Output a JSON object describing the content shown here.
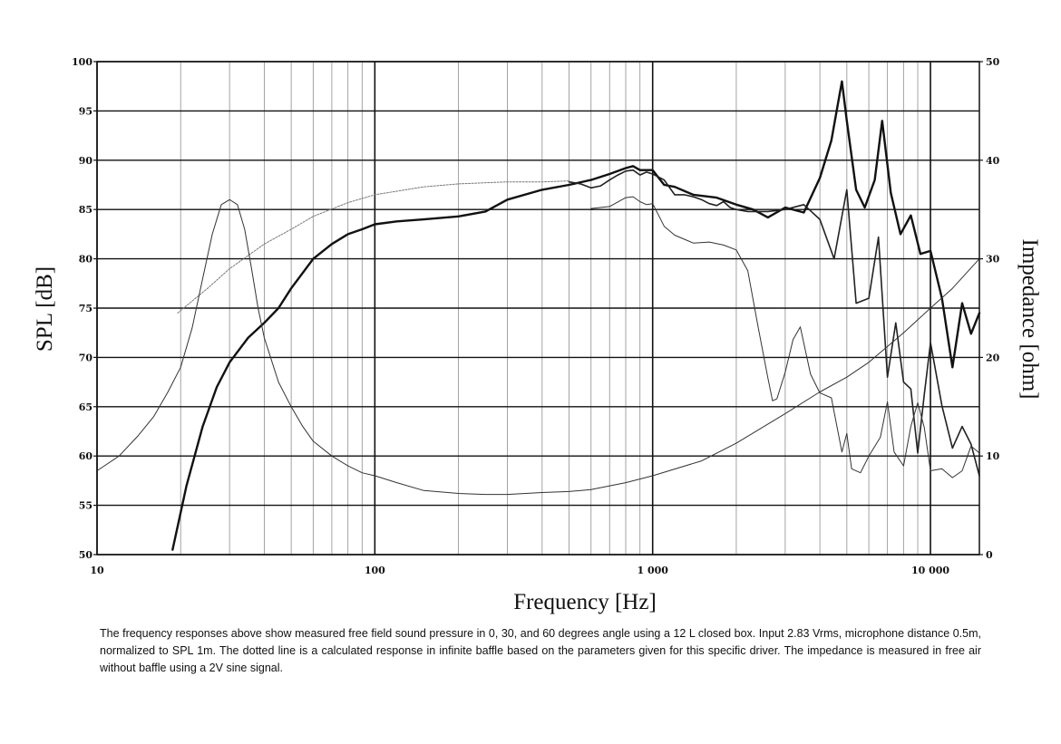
{
  "chart_data": {
    "type": "line",
    "title": "",
    "xlabel": "Frequency [Hz]",
    "ylabel": "SPL [dB]",
    "y2label": "Impedance [ohm]",
    "x_scale": "log",
    "xlim": [
      10,
      15000
    ],
    "ylim": [
      50,
      100
    ],
    "y2lim": [
      0,
      50
    ],
    "grid": true,
    "legend": "none",
    "x_ticks": [
      {
        "value": 10,
        "label": "10"
      },
      {
        "value": 100,
        "label": "100"
      },
      {
        "value": 1000,
        "label": "1 000"
      },
      {
        "value": 10000,
        "label": "10 000"
      }
    ],
    "y_ticks": [
      {
        "value": 50,
        "label": "50"
      },
      {
        "value": 55,
        "label": "55"
      },
      {
        "value": 60,
        "label": "60"
      },
      {
        "value": 65,
        "label": "65"
      },
      {
        "value": 70,
        "label": "70"
      },
      {
        "value": 75,
        "label": "75"
      },
      {
        "value": 80,
        "label": "80"
      },
      {
        "value": 85,
        "label": "85"
      },
      {
        "value": 90,
        "label": "90"
      },
      {
        "value": 95,
        "label": "95"
      },
      {
        "value": 100,
        "label": "100"
      }
    ],
    "y2_ticks": [
      {
        "value": 0,
        "label": "0"
      },
      {
        "value": 10,
        "label": "10"
      },
      {
        "value": 20,
        "label": "20"
      },
      {
        "value": 30,
        "label": "30"
      },
      {
        "value": 40,
        "label": "40"
      },
      {
        "value": 50,
        "label": "50"
      }
    ],
    "series": [
      {
        "axis": "left",
        "style": "thick",
        "x": [
          18.7,
          21,
          24,
          27,
          30,
          35,
          40,
          45,
          50,
          60,
          70,
          80,
          90,
          100,
          120,
          150,
          200,
          250,
          300,
          400,
          500,
          600,
          700,
          800,
          850,
          900,
          1000,
          1100,
          1200,
          1400,
          1700,
          2000,
          2300,
          2600,
          3000,
          3500,
          4000,
          4400,
          4800,
          5000,
          5400,
          5800,
          6300,
          6700,
          7200,
          7800,
          8500,
          9200,
          10000,
          11000,
          12000,
          13000,
          14000,
          15000
        ],
        "y": [
          50.5,
          57,
          63,
          67,
          69.5,
          72,
          73.5,
          75,
          77,
          80,
          81.5,
          82.5,
          83,
          83.5,
          83.8,
          84,
          84.3,
          84.8,
          86,
          87,
          87.5,
          88,
          88.6,
          89.2,
          89.4,
          89,
          89,
          87.5,
          87.3,
          86.5,
          86.2,
          85.5,
          85.0,
          84.2,
          85.2,
          84.7,
          88.2,
          92,
          98,
          94,
          87,
          85.2,
          88,
          94,
          86.7,
          82.5,
          84.4,
          80.5,
          80.8,
          76,
          69,
          75.5,
          72.4,
          74.5
        ]
      },
      {
        "axis": "left",
        "style": "medium",
        "x": [
          500,
          550,
          600,
          650,
          700,
          750,
          800,
          850,
          900,
          950,
          1000,
          1100,
          1200,
          1300,
          1400,
          1500,
          1600,
          1700,
          1800,
          1900,
          2000,
          2200,
          2600,
          3000,
          3500,
          4000,
          4500,
          5000,
          5400,
          6000,
          6500,
          7000,
          7500,
          8000,
          8500,
          9000,
          9500,
          10000,
          11000,
          12000,
          13000,
          14000,
          15000
        ],
        "y": [
          87.8,
          87.6,
          87.2,
          87.4,
          88,
          88.5,
          88.9,
          89,
          88.5,
          88.8,
          88.6,
          88,
          86.5,
          86.5,
          86.3,
          86,
          85.6,
          85.4,
          85.8,
          85.2,
          85,
          84.8,
          84.8,
          85,
          85.5,
          84,
          80,
          87,
          75.5,
          76,
          82.2,
          68,
          73.5,
          67.5,
          66.8,
          60.3,
          66.2,
          71.5,
          65.1,
          60.8,
          63,
          61.2,
          58
        ]
      },
      {
        "axis": "left",
        "style": "thin",
        "x": [
          600,
          700,
          800,
          850,
          900,
          950,
          1000,
          1100,
          1200,
          1400,
          1600,
          1800,
          2000,
          2200,
          2400,
          2600,
          2700,
          2800,
          3000,
          3200,
          3400,
          3700,
          4000,
          4400,
          4800,
          5000,
          5200,
          5600,
          6000,
          6600,
          7000,
          7400,
          8000,
          8500,
          9000,
          9500,
          10000,
          11000,
          12000,
          13000,
          14000,
          15000
        ],
        "y": [
          85.1,
          85.3,
          86.2,
          86.3,
          85.8,
          85.5,
          85.6,
          83.3,
          82.4,
          81.6,
          81.7,
          81.4,
          80.9,
          78.8,
          73.0,
          67.9,
          65.6,
          65.8,
          68.5,
          71.8,
          73.1,
          68.3,
          66.4,
          65.9,
          60.4,
          62.3,
          58.7,
          58.3,
          60.0,
          61.9,
          65.5,
          60.4,
          59.0,
          63.0,
          65.4,
          62.9,
          58.5,
          58.7,
          57.8,
          58.5,
          61.0,
          60.3
        ]
      },
      {
        "axis": "left",
        "style": "dotted",
        "x": [
          19.5,
          25,
          30,
          40,
          50,
          60,
          80,
          100,
          150,
          200,
          300,
          400,
          500
        ],
        "y": [
          74.5,
          77,
          79,
          81.5,
          83,
          84.3,
          85.7,
          86.5,
          87.3,
          87.6,
          87.8,
          87.8,
          87.9
        ]
      },
      {
        "axis": "right",
        "style": "thin",
        "x": [
          10,
          12,
          14,
          16,
          18,
          20,
          22,
          24,
          26,
          28,
          30,
          32,
          34,
          36,
          38,
          40,
          45,
          50,
          55,
          60,
          70,
          80,
          90,
          100,
          120,
          150,
          200,
          250,
          300,
          400,
          500,
          600,
          800,
          1000,
          1500,
          2000,
          3000,
          4000,
          5000,
          6000,
          8000,
          10000,
          12000,
          15000
        ],
        "y": [
          8.5,
          10,
          12,
          14,
          16.5,
          19,
          23,
          28,
          32.5,
          35.5,
          36,
          35.5,
          33,
          29,
          25,
          22,
          17.5,
          15,
          13,
          11.5,
          10,
          9,
          8.3,
          8,
          7.3,
          6.5,
          6.2,
          6.1,
          6.1,
          6.3,
          6.4,
          6.6,
          7.3,
          8,
          9.5,
          11.3,
          14.3,
          16.5,
          18,
          19.5,
          22.5,
          25,
          27,
          30
        ]
      }
    ]
  },
  "caption": "The frequency responses above show measured free field sound pressure in 0, 30, and 60 degrees angle using a 12 L closed box. Input 2.83 Vrms, microphone distance 0.5m, normalized to SPL 1m. The dotted line is a calculated response in infinite baffle based on the parameters given for this specific driver. The impedance is measured in free air without baffle using a 2V sine signal."
}
